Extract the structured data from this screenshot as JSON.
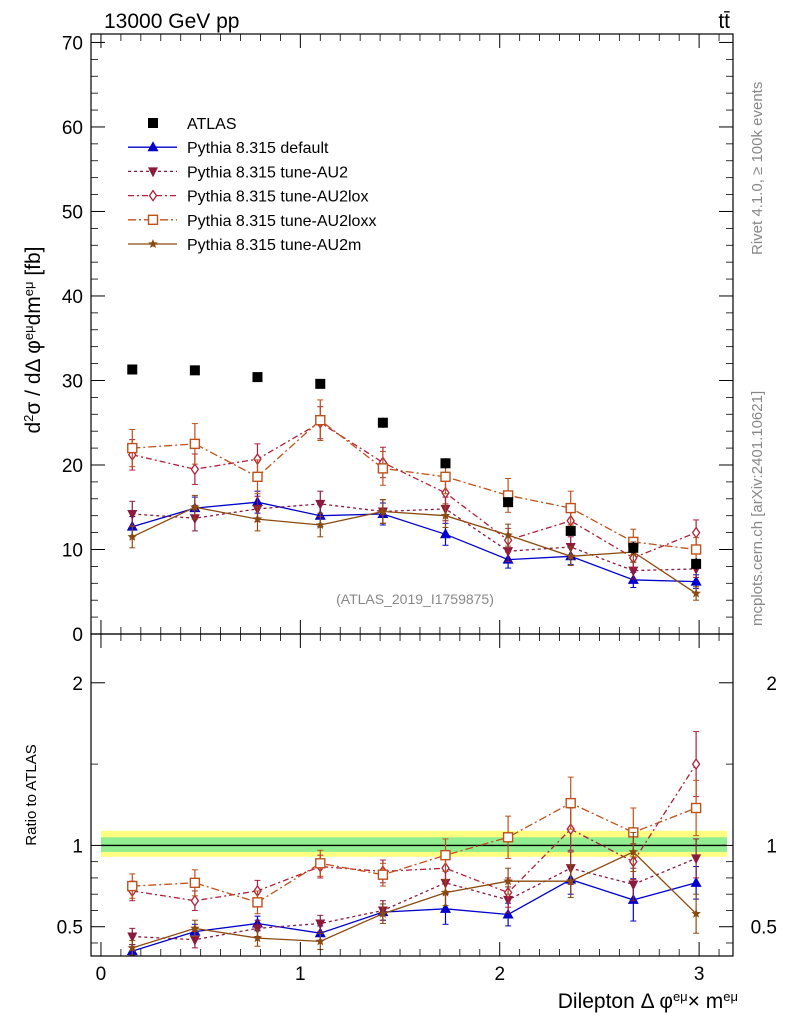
{
  "header": {
    "left_label": "13000 GeV pp",
    "right_label": "tt̄"
  },
  "side_labels": {
    "rivet": "Rivet 4.1.0, ≥ 100k events",
    "mcplots": "mcplots.cern.ch [arXiv:2401.10621]"
  },
  "watermark": "(ATLAS_2019_I1759875)",
  "colors": {
    "atlas": "#000000",
    "default": "#0000cc",
    "au2": "#8b1a3c",
    "au2lox": "#b0203c",
    "au2loxx": "#c0501a",
    "au2m": "#8b4a10",
    "band_outer": "#ffff80",
    "band_inner": "#90ee90"
  },
  "chart_data": [
    {
      "type": "line",
      "panel": "main",
      "ylabel": "d²σ / dΔ φ^eμ dm^eμ [fb]",
      "ylim": [
        0,
        71
      ],
      "xlim": [
        -0.05,
        3.17
      ],
      "y_ticks": [
        "0",
        "10",
        "20",
        "30",
        "40",
        "50",
        "60",
        "70"
      ],
      "x": [
        0.157,
        0.471,
        0.785,
        1.1,
        1.414,
        1.728,
        2.042,
        2.356,
        2.67,
        2.985
      ],
      "legend": [
        "ATLAS",
        "Pythia 8.315 default",
        "Pythia 8.315 tune-AU2",
        "Pythia 8.315 tune-AU2lox",
        "Pythia 8.315 tune-AU2loxx",
        "Pythia 8.315 tune-AU2m"
      ],
      "series": [
        {
          "name": "ATLAS",
          "key": "atlas",
          "marker": "square-filled",
          "values": [
            31.3,
            31.2,
            30.4,
            29.6,
            25.0,
            20.2,
            15.6,
            12.2,
            10.2,
            8.3
          ],
          "errors": [
            0.5,
            0.5,
            0.5,
            0.5,
            0.6,
            0.6,
            0.6,
            0.6,
            0.7,
            0.7
          ]
        },
        {
          "name": "Pythia 8.315 default",
          "key": "default",
          "marker": "triangle-up",
          "dash": "",
          "values": [
            12.7,
            14.9,
            15.6,
            14.0,
            14.2,
            11.8,
            8.8,
            9.2,
            6.4,
            6.2
          ],
          "errors": [
            1.2,
            1.3,
            1.3,
            1.3,
            1.3,
            1.3,
            1.0,
            1.0,
            0.9,
            0.8
          ]
        },
        {
          "name": "Pythia 8.315 tune-AU2",
          "key": "au2",
          "marker": "triangle-down",
          "dash": "3,3",
          "values": [
            14.2,
            13.7,
            14.8,
            15.4,
            14.5,
            14.8,
            9.8,
            10.3,
            7.5,
            7.7
          ],
          "errors": [
            1.5,
            1.5,
            1.5,
            1.5,
            1.4,
            1.4,
            1.2,
            1.2,
            1.0,
            1.0
          ]
        },
        {
          "name": "Pythia 8.315 tune-AU2lox",
          "key": "au2lox",
          "marker": "diamond-open",
          "dash": "6,3,2,3",
          "values": [
            21.2,
            19.5,
            20.7,
            25.0,
            20.3,
            16.7,
            11.1,
            13.4,
            9.0,
            12.0
          ],
          "errors": [
            1.8,
            1.8,
            1.8,
            1.9,
            1.8,
            1.7,
            1.4,
            1.6,
            1.2,
            1.5
          ]
        },
        {
          "name": "Pythia 8.315 tune-AU2loxx",
          "key": "au2loxx",
          "marker": "square-open",
          "dash": "8,3,2,3",
          "values": [
            22.0,
            22.5,
            18.6,
            25.3,
            19.6,
            18.6,
            16.4,
            14.9,
            10.9,
            10.0
          ],
          "errors": [
            2.2,
            2.4,
            2.0,
            2.4,
            2.0,
            2.0,
            2.0,
            2.0,
            1.5,
            1.4
          ]
        },
        {
          "name": "Pythia 8.315 tune-AU2m",
          "key": "au2m",
          "marker": "star",
          "dash": "",
          "values": [
            11.5,
            15.0,
            13.6,
            12.9,
            14.5,
            14.0,
            11.7,
            9.2,
            9.7,
            4.8
          ],
          "errors": [
            1.3,
            1.4,
            1.4,
            1.4,
            1.4,
            1.4,
            1.3,
            1.1,
            1.2,
            0.8
          ]
        }
      ]
    },
    {
      "type": "line",
      "panel": "ratio",
      "ylabel": "Ratio to ATLAS",
      "xlabel": "Dilepton Δ φ^eμ× m^eμ",
      "ylim": [
        0.32,
        2.3
      ],
      "y_ticks": [
        "0.5",
        "1",
        "2"
      ],
      "x_ticks": [
        "0",
        "1",
        "2",
        "3"
      ],
      "band": {
        "x": [
          0,
          3.14
        ],
        "outer": [
          0.93,
          1.09
        ],
        "inner": [
          0.96,
          1.05
        ]
      },
      "series": [
        {
          "key": "default",
          "values": [
            0.35,
            0.47,
            0.52,
            0.46,
            0.59,
            0.61,
            0.575,
            0.79,
            0.665,
            0.77
          ],
          "errors": [
            0.04,
            0.045,
            0.045,
            0.045,
            0.05,
            0.095,
            0.07,
            0.09,
            0.13,
            0.1
          ]
        },
        {
          "key": "au2",
          "values": [
            0.44,
            0.42,
            0.49,
            0.52,
            0.6,
            0.77,
            0.665,
            0.86,
            0.76,
            0.92
          ],
          "errors": [
            0.05,
            0.05,
            0.05,
            0.05,
            0.06,
            0.07,
            0.08,
            0.1,
            0.1,
            0.12
          ]
        },
        {
          "key": "au2lox",
          "values": [
            0.72,
            0.66,
            0.72,
            0.87,
            0.84,
            0.86,
            0.71,
            1.1,
            0.9,
            1.5
          ],
          "errors": [
            0.06,
            0.06,
            0.065,
            0.07,
            0.07,
            0.08,
            0.09,
            0.13,
            0.11,
            0.2
          ]
        },
        {
          "key": "au2loxx",
          "values": [
            0.75,
            0.77,
            0.65,
            0.89,
            0.82,
            0.94,
            1.05,
            1.26,
            1.08,
            1.23
          ],
          "errors": [
            0.075,
            0.08,
            0.07,
            0.08,
            0.07,
            0.1,
            0.13,
            0.16,
            0.15,
            0.17
          ]
        },
        {
          "key": "au2m",
          "values": [
            0.37,
            0.49,
            0.43,
            0.41,
            0.58,
            0.71,
            0.78,
            0.78,
            0.96,
            0.58
          ],
          "errors": [
            0.045,
            0.05,
            0.05,
            0.05,
            0.06,
            0.08,
            0.08,
            0.1,
            0.12,
            0.12
          ]
        }
      ]
    }
  ]
}
